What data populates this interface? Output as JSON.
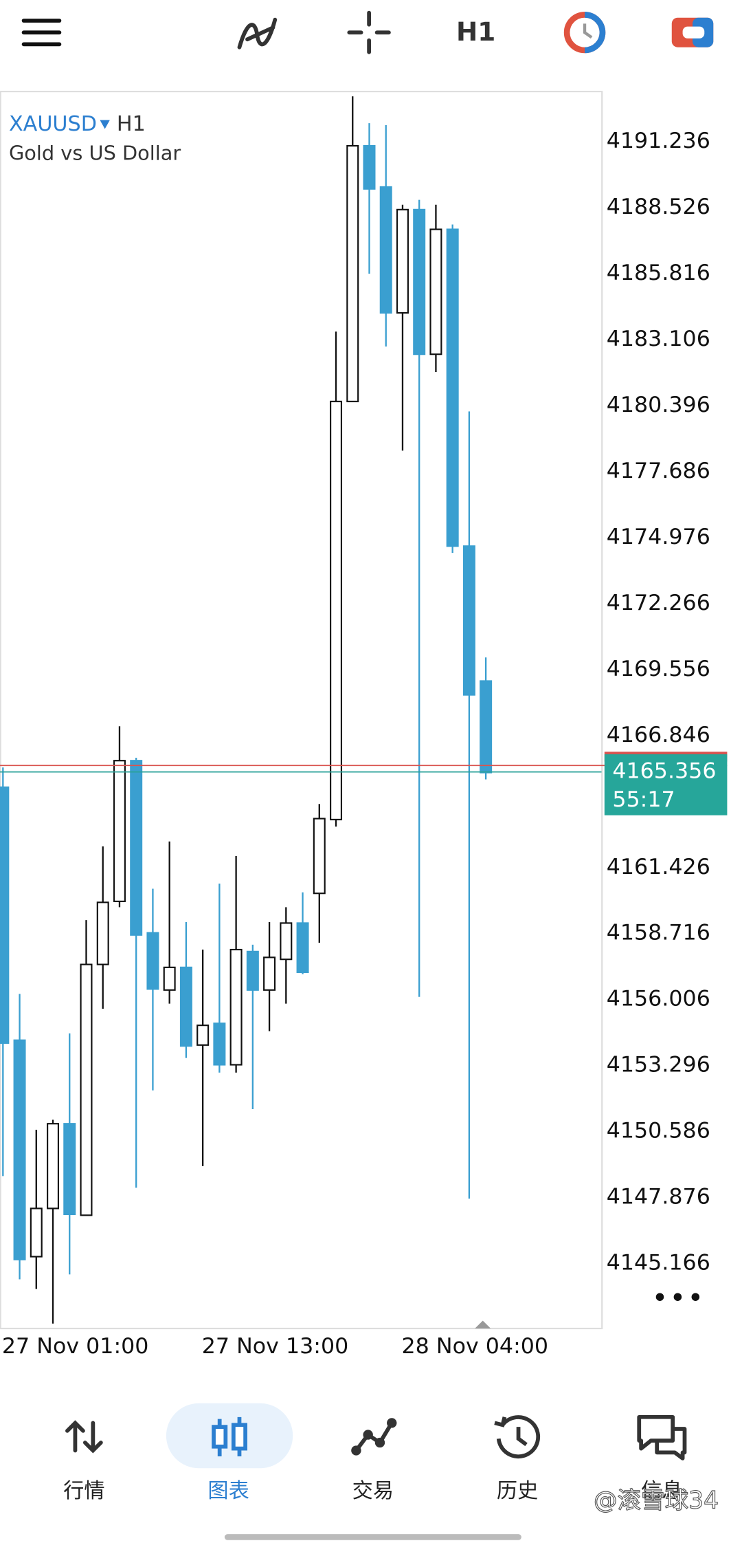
{
  "toolbar": {
    "timeframe": "H1"
  },
  "chart_data": {
    "type": "candlestick",
    "symbol": "XAUUSD",
    "timeframe": "H1",
    "subtitle": "Gold vs US Dollar",
    "categories": [
      "27 Nov 01:00",
      null,
      null,
      null,
      null,
      null,
      null,
      null,
      null,
      null,
      null,
      null,
      "27 Nov 13:00",
      null,
      null,
      null,
      null,
      null,
      null,
      null,
      null,
      null,
      null,
      null,
      "28 Nov 04:00",
      null,
      null,
      null,
      null,
      null
    ],
    "open": [
      4164.73,
      4154.34,
      4145.45,
      4147.43,
      4150.91,
      4147.15,
      4157.45,
      4160.04,
      4165.82,
      4158.75,
      4156.4,
      4157.33,
      4154.14,
      4155.03,
      4153.33,
      4157.98,
      4156.4,
      4157.66,
      4159.15,
      4160.37,
      4163.4,
      4180.57,
      4191.07,
      4189.38,
      4184.21,
      4188.45,
      4182.51,
      4187.64,
      4174.63,
      4169.09
    ],
    "high": [
      4165.54,
      4156.24,
      4150.66,
      4151.07,
      4154.62,
      4159.27,
      4162.3,
      4167.23,
      4165.94,
      4160.56,
      4162.5,
      4159.19,
      4158.06,
      4160.77,
      4161.9,
      4158.26,
      4159.19,
      4159.8,
      4160.41,
      4164.04,
      4183.44,
      4193.1,
      4192.0,
      4191.92,
      4188.65,
      4188.85,
      4188.65,
      4187.84,
      4180.16,
      4170.06
    ],
    "low": [
      4148.76,
      4144.52,
      4144.12,
      4142.7,
      4144.72,
      4147.15,
      4155.63,
      4159.8,
      4148.28,
      4152.28,
      4155.84,
      4153.61,
      4149.17,
      4153.01,
      4153.01,
      4151.51,
      4154.71,
      4155.84,
      4157.05,
      4158.34,
      4163.11,
      4180.57,
      4185.82,
      4182.83,
      4178.55,
      4156.12,
      4181.78,
      4174.35,
      4147.83,
      4165.05
    ],
    "close": [
      4154.22,
      4145.33,
      4147.43,
      4150.91,
      4147.19,
      4157.45,
      4160.0,
      4165.82,
      4158.66,
      4156.44,
      4157.33,
      4154.1,
      4154.95,
      4153.33,
      4158.06,
      4156.4,
      4157.74,
      4159.15,
      4157.13,
      4163.44,
      4180.57,
      4191.07,
      4189.3,
      4184.21,
      4188.45,
      4182.51,
      4187.64,
      4174.63,
      4168.52,
      4165.33
    ],
    "up_color": "#ffffff",
    "down_color": "#3a9fd0",
    "ylim": [
      4142.5,
      4193.3
    ],
    "yticks": [
      4191.236,
      4188.526,
      4185.816,
      4183.106,
      4180.396,
      4177.686,
      4174.976,
      4172.266,
      4169.556,
      4166.846,
      4161.426,
      4158.716,
      4156.006,
      4153.296,
      4150.586,
      4147.876,
      4145.166
    ],
    "bid_price": 4165.356,
    "ask_price": 4165.62,
    "countdown": "55:17",
    "grid": false
  },
  "nav": [
    "行情",
    "图表",
    "交易",
    "历史",
    "信息"
  ],
  "watermark": "@滚雪球34"
}
